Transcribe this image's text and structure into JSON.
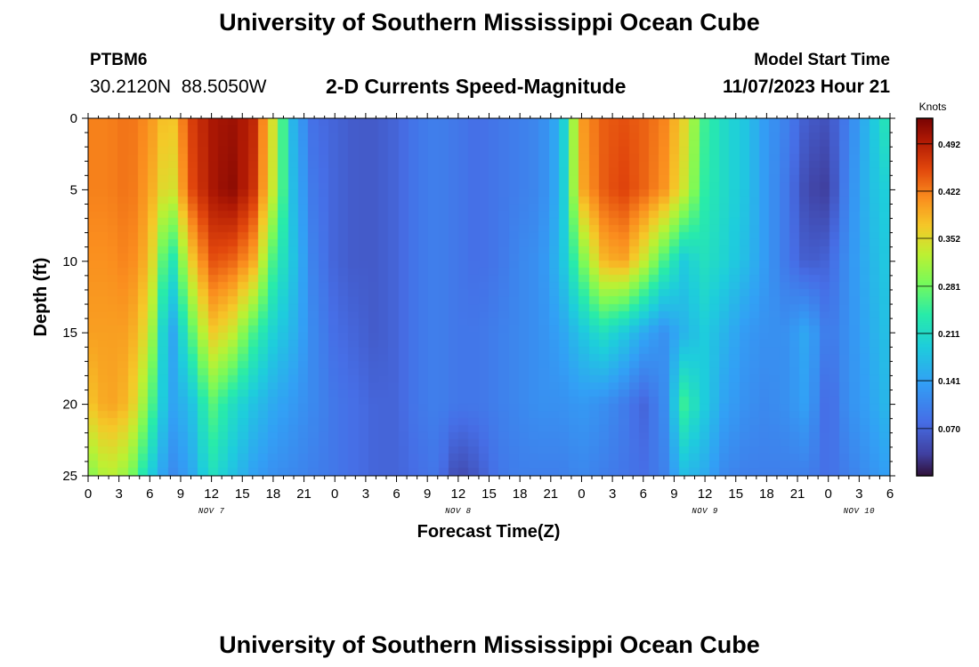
{
  "header": {
    "title": "University of Southern Mississippi Ocean Cube",
    "station_id": "PTBM6",
    "coordinates": "30.2120N  88.5050W",
    "subtitle": "2-D Currents Speed-Magnitude",
    "model_start_label": "Model Start Time",
    "model_start_value": "11/07/2023 Hour 21"
  },
  "footer": {
    "title": "University of Southern Mississippi Ocean Cube"
  },
  "chart_data": {
    "type": "heatmap",
    "xlabel": "Forecast Time(Z)",
    "ylabel": "Depth (ft)",
    "x_tick_labels": [
      "0",
      "3",
      "6",
      "9",
      "12",
      "15",
      "18",
      "21",
      "0",
      "3",
      "6",
      "9",
      "12",
      "15",
      "18",
      "21",
      "0",
      "3",
      "6",
      "9",
      "12",
      "15",
      "18",
      "21",
      "0",
      "3",
      "6"
    ],
    "x_hours_range": [
      0,
      78
    ],
    "date_labels": [
      {
        "text": "NOV 7",
        "hour": 12
      },
      {
        "text": "NOV 8",
        "hour": 36
      },
      {
        "text": "NOV 9",
        "hour": 60
      },
      {
        "text": "NOV 10",
        "hour": 75
      }
    ],
    "y_ticks": [
      0,
      5,
      10,
      15,
      20,
      25
    ],
    "ylim": [
      0,
      25
    ],
    "colorbar": {
      "title": "Knots",
      "ticks": [
        "0.070",
        "0.141",
        "0.211",
        "0.281",
        "0.352",
        "0.422",
        "0.492"
      ],
      "tick_values": [
        0.07,
        0.141,
        0.211,
        0.281,
        0.352,
        0.422,
        0.492
      ],
      "range": [
        0.0,
        0.53
      ]
    },
    "depths_ft": [
      0,
      5,
      10,
      15,
      20,
      25
    ],
    "hours": [
      0,
      2,
      4,
      6,
      8,
      10,
      12,
      14,
      16,
      18,
      20,
      22,
      24,
      26,
      28,
      30,
      32,
      34,
      36,
      38,
      40,
      42,
      44,
      46,
      48,
      50,
      52,
      54,
      56,
      58,
      60,
      62,
      64,
      66,
      68,
      70,
      72,
      74,
      76,
      78
    ],
    "speed_knots": [
      [
        0.42,
        0.42,
        0.43,
        0.41,
        0.36,
        0.46,
        0.5,
        0.51,
        0.49,
        0.35,
        0.16,
        0.08,
        0.07,
        0.06,
        0.06,
        0.07,
        0.09,
        0.1,
        0.09,
        0.08,
        0.09,
        0.1,
        0.11,
        0.16,
        0.4,
        0.44,
        0.45,
        0.44,
        0.42,
        0.36,
        0.25,
        0.21,
        0.18,
        0.13,
        0.1,
        0.06,
        0.05,
        0.1,
        0.17,
        0.24
      ],
      [
        0.42,
        0.42,
        0.43,
        0.4,
        0.33,
        0.45,
        0.5,
        0.52,
        0.48,
        0.34,
        0.17,
        0.09,
        0.07,
        0.06,
        0.06,
        0.07,
        0.09,
        0.1,
        0.09,
        0.08,
        0.09,
        0.1,
        0.11,
        0.16,
        0.39,
        0.44,
        0.46,
        0.44,
        0.41,
        0.34,
        0.24,
        0.21,
        0.18,
        0.13,
        0.09,
        0.04,
        0.03,
        0.11,
        0.17,
        0.2
      ],
      [
        0.41,
        0.41,
        0.42,
        0.38,
        0.21,
        0.36,
        0.45,
        0.44,
        0.4,
        0.26,
        0.18,
        0.1,
        0.07,
        0.06,
        0.06,
        0.07,
        0.09,
        0.1,
        0.09,
        0.08,
        0.09,
        0.11,
        0.12,
        0.17,
        0.28,
        0.38,
        0.4,
        0.34,
        0.26,
        0.19,
        0.22,
        0.2,
        0.17,
        0.13,
        0.09,
        0.06,
        0.07,
        0.12,
        0.16,
        0.19
      ],
      [
        0.4,
        0.4,
        0.4,
        0.34,
        0.13,
        0.26,
        0.37,
        0.34,
        0.26,
        0.2,
        0.16,
        0.11,
        0.08,
        0.07,
        0.06,
        0.07,
        0.09,
        0.1,
        0.09,
        0.09,
        0.1,
        0.11,
        0.12,
        0.14,
        0.18,
        0.22,
        0.19,
        0.15,
        0.12,
        0.16,
        0.19,
        0.16,
        0.13,
        0.12,
        0.12,
        0.15,
        0.09,
        0.12,
        0.15,
        0.18
      ],
      [
        0.37,
        0.4,
        0.38,
        0.28,
        0.14,
        0.17,
        0.27,
        0.22,
        0.18,
        0.15,
        0.13,
        0.11,
        0.09,
        0.08,
        0.07,
        0.07,
        0.09,
        0.1,
        0.09,
        0.09,
        0.1,
        0.11,
        0.12,
        0.12,
        0.13,
        0.12,
        0.1,
        0.07,
        0.11,
        0.25,
        0.19,
        0.14,
        0.12,
        0.11,
        0.12,
        0.14,
        0.07,
        0.12,
        0.14,
        0.17
      ],
      [
        0.29,
        0.33,
        0.3,
        0.2,
        0.11,
        0.14,
        0.22,
        0.18,
        0.14,
        0.12,
        0.11,
        0.1,
        0.09,
        0.08,
        0.07,
        0.07,
        0.08,
        0.09,
        0.04,
        0.06,
        0.09,
        0.1,
        0.1,
        0.1,
        0.11,
        0.1,
        0.09,
        0.08,
        0.1,
        0.17,
        0.15,
        0.11,
        0.1,
        0.1,
        0.1,
        0.1,
        0.08,
        0.1,
        0.12,
        0.14
      ]
    ]
  }
}
